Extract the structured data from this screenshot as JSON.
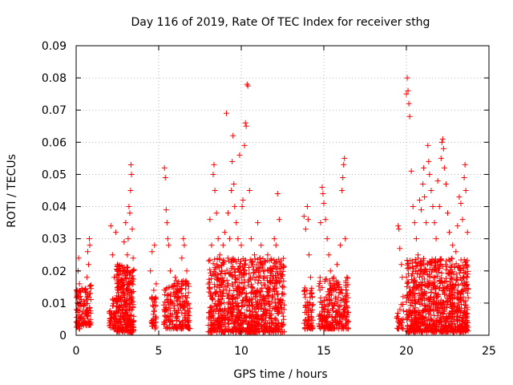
{
  "chart_data": {
    "type": "scatter",
    "title": "Day 116 of 2019, Rate Of TEC Index for receiver sthg",
    "xlabel": "GPS time / hours",
    "ylabel": "ROTI / TECUs",
    "xlim": [
      0,
      25
    ],
    "ylim": [
      0,
      0.09
    ],
    "x_ticks": [
      0,
      5,
      10,
      15,
      20,
      25
    ],
    "x_tick_labels": [
      "0",
      "5",
      "10",
      "15",
      "20",
      "25"
    ],
    "y_ticks": [
      0,
      0.01,
      0.02,
      0.03,
      0.04,
      0.05,
      0.06,
      0.07,
      0.08,
      0.09
    ],
    "y_tick_labels": [
      "0",
      "0.01",
      "0.02",
      "0.03",
      "0.04",
      "0.05",
      "0.06",
      "0.07",
      "0.08",
      "0.09"
    ],
    "grid": true,
    "marker": "+",
    "marker_color": "#ff0000",
    "series": [
      {
        "name": "ROTI",
        "points": [
          [
            0.05,
            0.004
          ],
          [
            0.08,
            0.008
          ],
          [
            0.1,
            0.012
          ],
          [
            0.12,
            0.02
          ],
          [
            0.15,
            0.024
          ],
          [
            0.18,
            0.006
          ],
          [
            0.2,
            0.016
          ],
          [
            0.25,
            0.01
          ],
          [
            0.3,
            0.003
          ],
          [
            0.4,
            0.005
          ],
          [
            0.45,
            0.009
          ],
          [
            0.5,
            0.014
          ],
          [
            0.55,
            0.007
          ],
          [
            0.6,
            0.011
          ],
          [
            0.65,
            0.018
          ],
          [
            0.7,
            0.026
          ],
          [
            0.75,
            0.022
          ],
          [
            0.8,
            0.03
          ],
          [
            0.82,
            0.028
          ],
          [
            0.85,
            0.013
          ],
          [
            2.1,
            0.034
          ],
          [
            2.2,
            0.025
          ],
          [
            2.3,
            0.018
          ],
          [
            2.4,
            0.032
          ],
          [
            2.5,
            0.022
          ],
          [
            2.6,
            0.012
          ],
          [
            2.7,
            0.02
          ],
          [
            2.8,
            0.015
          ],
          [
            2.9,
            0.029
          ],
          [
            3.0,
            0.035
          ],
          [
            3.1,
            0.025
          ],
          [
            3.15,
            0.03
          ],
          [
            3.2,
            0.04
          ],
          [
            3.25,
            0.038
          ],
          [
            3.3,
            0.045
          ],
          [
            3.32,
            0.053
          ],
          [
            3.35,
            0.05
          ],
          [
            3.4,
            0.033
          ],
          [
            3.45,
            0.024
          ],
          [
            4.5,
            0.02
          ],
          [
            4.6,
            0.026
          ],
          [
            4.7,
            0.014
          ],
          [
            4.75,
            0.028
          ],
          [
            4.8,
            0.009
          ],
          [
            4.85,
            0.016
          ],
          [
            5.35,
            0.052
          ],
          [
            5.4,
            0.049
          ],
          [
            5.45,
            0.039
          ],
          [
            5.5,
            0.035
          ],
          [
            5.55,
            0.03
          ],
          [
            5.6,
            0.028
          ],
          [
            5.7,
            0.02
          ],
          [
            5.8,
            0.015
          ],
          [
            6.0,
            0.018
          ],
          [
            6.2,
            0.014
          ],
          [
            6.4,
            0.024
          ],
          [
            6.5,
            0.03
          ],
          [
            6.55,
            0.028
          ],
          [
            6.7,
            0.02
          ],
          [
            6.8,
            0.016
          ],
          [
            8.1,
            0.036
          ],
          [
            8.2,
            0.028
          ],
          [
            8.3,
            0.05
          ],
          [
            8.35,
            0.053
          ],
          [
            8.4,
            0.045
          ],
          [
            8.5,
            0.038
          ],
          [
            8.6,
            0.03
          ],
          [
            8.7,
            0.025
          ],
          [
            8.8,
            0.02
          ],
          [
            8.9,
            0.028
          ],
          [
            9.0,
            0.032
          ],
          [
            9.1,
            0.069
          ],
          [
            9.2,
            0.038
          ],
          [
            9.3,
            0.03
          ],
          [
            9.4,
            0.045
          ],
          [
            9.45,
            0.054
          ],
          [
            9.5,
            0.062
          ],
          [
            9.55,
            0.047
          ],
          [
            9.6,
            0.04
          ],
          [
            9.7,
            0.035
          ],
          [
            9.8,
            0.03
          ],
          [
            9.9,
            0.056
          ],
          [
            10.0,
            0.028
          ],
          [
            10.05,
            0.04
          ],
          [
            10.1,
            0.042
          ],
          [
            10.2,
            0.059
          ],
          [
            10.25,
            0.066
          ],
          [
            10.3,
            0.065
          ],
          [
            10.35,
            0.078
          ],
          [
            10.4,
            0.0775
          ],
          [
            10.5,
            0.045
          ],
          [
            10.6,
            0.03
          ],
          [
            10.8,
            0.025
          ],
          [
            11.0,
            0.035
          ],
          [
            11.2,
            0.028
          ],
          [
            11.4,
            0.02
          ],
          [
            11.6,
            0.025
          ],
          [
            11.8,
            0.02
          ],
          [
            12.0,
            0.03
          ],
          [
            12.1,
            0.028
          ],
          [
            12.2,
            0.044
          ],
          [
            12.3,
            0.036
          ],
          [
            12.4,
            0.022
          ],
          [
            12.5,
            0.015
          ],
          [
            13.8,
            0.037
          ],
          [
            13.9,
            0.033
          ],
          [
            14.0,
            0.04
          ],
          [
            14.05,
            0.036
          ],
          [
            14.1,
            0.025
          ],
          [
            14.2,
            0.018
          ],
          [
            14.3,
            0.012
          ],
          [
            14.8,
            0.035
          ],
          [
            14.9,
            0.046
          ],
          [
            14.95,
            0.044
          ],
          [
            15.0,
            0.041
          ],
          [
            15.1,
            0.036
          ],
          [
            15.2,
            0.03
          ],
          [
            15.3,
            0.025
          ],
          [
            15.4,
            0.02
          ],
          [
            15.6,
            0.018
          ],
          [
            15.8,
            0.022
          ],
          [
            16.0,
            0.028
          ],
          [
            16.1,
            0.045
          ],
          [
            16.15,
            0.049
          ],
          [
            16.2,
            0.053
          ],
          [
            16.25,
            0.055
          ],
          [
            16.3,
            0.03
          ],
          [
            16.4,
            0.018
          ],
          [
            19.5,
            0.034
          ],
          [
            19.55,
            0.033
          ],
          [
            19.6,
            0.027
          ],
          [
            19.7,
            0.022
          ],
          [
            19.75,
            0.018
          ],
          [
            19.8,
            0.012
          ],
          [
            20.0,
            0.075
          ],
          [
            20.05,
            0.08
          ],
          [
            20.1,
            0.076
          ],
          [
            20.15,
            0.072
          ],
          [
            20.2,
            0.068
          ],
          [
            20.3,
            0.051
          ],
          [
            20.4,
            0.04
          ],
          [
            20.5,
            0.035
          ],
          [
            20.6,
            0.03
          ],
          [
            20.7,
            0.025
          ],
          [
            20.8,
            0.042
          ],
          [
            20.9,
            0.039
          ],
          [
            21.0,
            0.047
          ],
          [
            21.05,
            0.052
          ],
          [
            21.1,
            0.043
          ],
          [
            21.2,
            0.035
          ],
          [
            21.3,
            0.059
          ],
          [
            21.35,
            0.054
          ],
          [
            21.4,
            0.05
          ],
          [
            21.5,
            0.045
          ],
          [
            21.6,
            0.04
          ],
          [
            21.7,
            0.035
          ],
          [
            21.8,
            0.03
          ],
          [
            21.9,
            0.048
          ],
          [
            22.0,
            0.04
          ],
          [
            22.1,
            0.055
          ],
          [
            22.15,
            0.06
          ],
          [
            22.2,
            0.061
          ],
          [
            22.25,
            0.058
          ],
          [
            22.3,
            0.052
          ],
          [
            22.4,
            0.047
          ],
          [
            22.5,
            0.038
          ],
          [
            22.6,
            0.032
          ],
          [
            22.8,
            0.028
          ],
          [
            23.0,
            0.026
          ],
          [
            23.1,
            0.034
          ],
          [
            23.2,
            0.043
          ],
          [
            23.3,
            0.041
          ],
          [
            23.4,
            0.036
          ],
          [
            23.5,
            0.049
          ],
          [
            23.55,
            0.053
          ],
          [
            23.6,
            0.045
          ],
          [
            23.7,
            0.032
          ]
        ],
        "bands": [
          {
            "x": [
              0.0,
              0.35
            ],
            "y": [
              0.002,
              0.015
            ],
            "n": 55
          },
          {
            "x": [
              0.4,
              0.9
            ],
            "y": [
              0.003,
              0.016
            ],
            "n": 65
          },
          {
            "x": [
              2.0,
              2.45
            ],
            "y": [
              0.002,
              0.012
            ],
            "n": 55
          },
          {
            "x": [
              2.45,
              3.5
            ],
            "y": [
              0.001,
              0.022
            ],
            "n": 300
          },
          {
            "x": [
              4.55,
              4.85
            ],
            "y": [
              0.002,
              0.012
            ],
            "n": 35
          },
          {
            "x": [
              5.3,
              5.75
            ],
            "y": [
              0.002,
              0.015
            ],
            "n": 55
          },
          {
            "x": [
              5.8,
              6.9
            ],
            "y": [
              0.002,
              0.017
            ],
            "n": 150
          },
          {
            "x": [
              8.0,
              12.6
            ],
            "y": [
              0.001,
              0.024
            ],
            "n": 900
          },
          {
            "x": [
              13.8,
              14.35
            ],
            "y": [
              0.002,
              0.015
            ],
            "n": 70
          },
          {
            "x": [
              14.7,
              16.5
            ],
            "y": [
              0.002,
              0.018
            ],
            "n": 260
          },
          {
            "x": [
              19.4,
              19.85
            ],
            "y": [
              0.002,
              0.01
            ],
            "n": 30
          },
          {
            "x": [
              20.0,
              23.75
            ],
            "y": [
              0.001,
              0.024
            ],
            "n": 850
          }
        ]
      }
    ]
  }
}
